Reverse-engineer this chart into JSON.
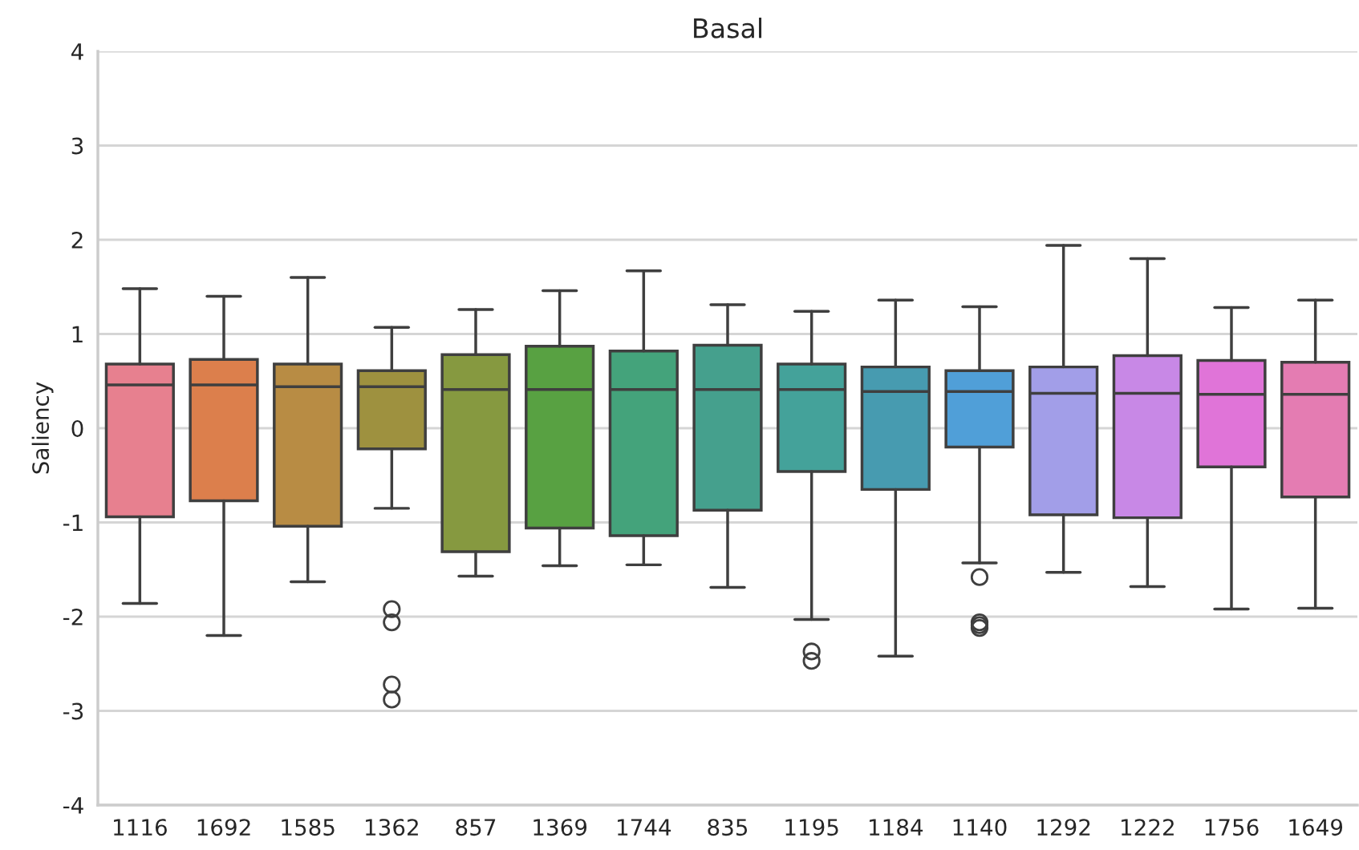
{
  "chart_data": {
    "type": "box",
    "title": "Basal",
    "ylabel": "Saliency",
    "categories": [
      "1116",
      "1692",
      "1585",
      "1362",
      "857",
      "1369",
      "1744",
      "835",
      "1195",
      "1184",
      "1140",
      "1292",
      "1222",
      "1756",
      "1649"
    ],
    "colors": [
      "#e7808f",
      "#dc7f4c",
      "#b88c44",
      "#9e913f",
      "#869940",
      "#58a142",
      "#44a37b",
      "#45a08d",
      "#44a29a",
      "#479bb0",
      "#509fd8",
      "#a29ee8",
      "#c888e6",
      "#e074d8",
      "#e47cb2"
    ],
    "boxes": [
      {
        "low": -1.86,
        "q1": -0.94,
        "median": 0.46,
        "q3": 0.68,
        "high": 1.48
      },
      {
        "low": -2.2,
        "q1": -0.77,
        "median": 0.46,
        "q3": 0.73,
        "high": 1.4
      },
      {
        "low": -1.63,
        "q1": -1.04,
        "median": 0.44,
        "q3": 0.68,
        "high": 1.6
      },
      {
        "low": -0.85,
        "q1": -0.22,
        "median": 0.44,
        "q3": 0.61,
        "high": 1.07,
        "outliers": [
          -1.92,
          -2.06,
          -2.72,
          -2.88
        ]
      },
      {
        "low": -1.57,
        "q1": -1.31,
        "median": 0.41,
        "q3": 0.78,
        "high": 1.26
      },
      {
        "low": -1.46,
        "q1": -1.06,
        "median": 0.41,
        "q3": 0.87,
        "high": 1.46
      },
      {
        "low": -1.45,
        "q1": -1.14,
        "median": 0.41,
        "q3": 0.82,
        "high": 1.67
      },
      {
        "low": -1.69,
        "q1": -0.87,
        "median": 0.41,
        "q3": 0.88,
        "high": 1.31
      },
      {
        "low": -2.03,
        "q1": -0.46,
        "median": 0.41,
        "q3": 0.68,
        "high": 1.24,
        "outliers": [
          -2.37,
          -2.47
        ]
      },
      {
        "low": -2.42,
        "q1": -0.65,
        "median": 0.39,
        "q3": 0.65,
        "high": 1.36
      },
      {
        "low": -1.43,
        "q1": -0.2,
        "median": 0.39,
        "q3": 0.61,
        "high": 1.29,
        "outliers": [
          -1.58,
          -2.06,
          -2.09,
          -2.12
        ]
      },
      {
        "low": -1.53,
        "q1": -0.92,
        "median": 0.37,
        "q3": 0.65,
        "high": 1.94
      },
      {
        "low": -1.68,
        "q1": -0.95,
        "median": 0.37,
        "q3": 0.77,
        "high": 1.8
      },
      {
        "low": -1.92,
        "q1": -0.41,
        "median": 0.36,
        "q3": 0.72,
        "high": 1.28
      },
      {
        "low": -1.91,
        "q1": -0.73,
        "median": 0.36,
        "q3": 0.7,
        "high": 1.36
      }
    ],
    "ylim": [
      -4,
      4
    ],
    "yticks": [
      -4,
      -3,
      -2,
      -1,
      0,
      1,
      2,
      3,
      4
    ],
    "grid": "y"
  }
}
